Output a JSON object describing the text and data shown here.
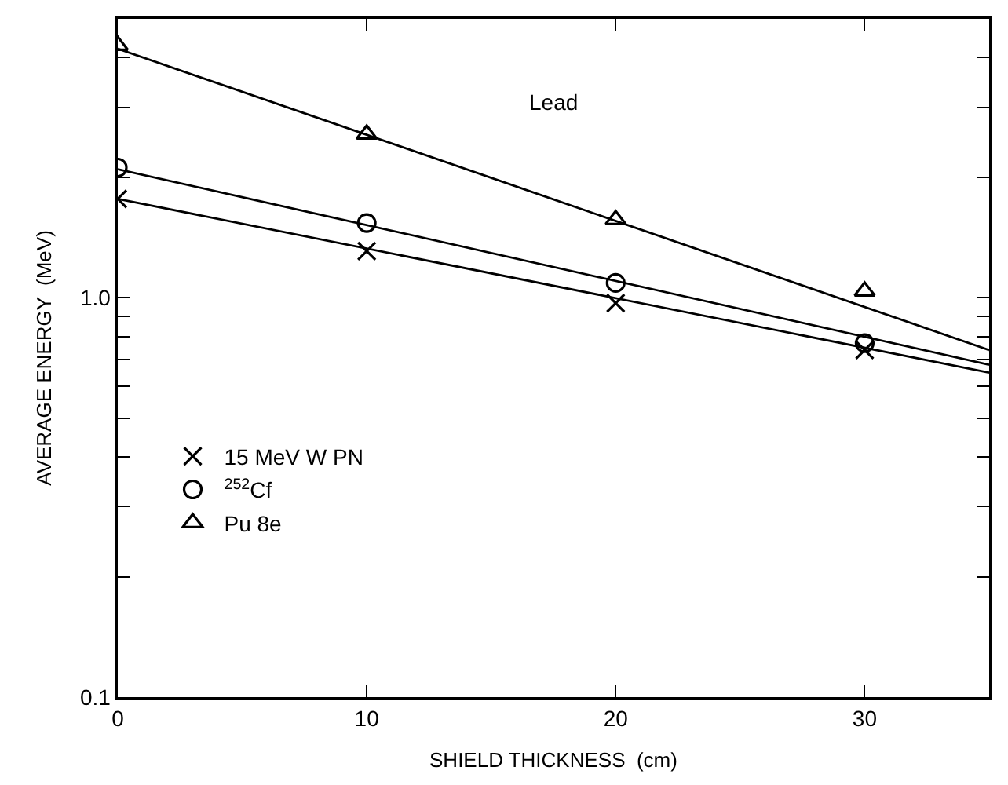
{
  "chart_data": {
    "type": "scatter",
    "xlabel": "SHIELD THICKNESS  (cm)",
    "ylabel": "AVERAGE ENERGY  (MeV)",
    "annotations": [
      "Lead"
    ],
    "log": "y",
    "legend": "bottom left",
    "xlim": [
      0,
      35
    ],
    "xticks": [
      0,
      10,
      20,
      30
    ],
    "ylim": [
      0.1,
      5
    ],
    "yticks": [
      {
        "value": 0.1,
        "label": "0.1"
      },
      {
        "value": 0.2,
        "label": null
      },
      {
        "value": 0.3,
        "label": null
      },
      {
        "value": 0.4,
        "label": null
      },
      {
        "value": 0.5,
        "label": null
      },
      {
        "value": 0.6,
        "label": null
      },
      {
        "value": 0.7,
        "label": null
      },
      {
        "value": 0.8,
        "label": null
      },
      {
        "value": 0.9,
        "label": null
      },
      {
        "value": 1,
        "label": "1.0"
      },
      {
        "value": 2,
        "label": null
      },
      {
        "value": 3,
        "label": null
      },
      {
        "value": 4,
        "label": null
      },
      {
        "value": 5,
        "label": null
      }
    ],
    "series": [
      {
        "type": "line",
        "color": "#000000",
        "marker": "none",
        "x": [
          0,
          35
        ],
        "values": [
          4.21,
          0.74
        ]
      },
      {
        "type": "line",
        "color": "#000000",
        "marker": "none",
        "x": [
          0,
          35
        ],
        "values": [
          2.1,
          0.68
        ]
      },
      {
        "type": "line",
        "color": "#000000",
        "marker": "none",
        "x": [
          0,
          35
        ],
        "values": [
          1.77,
          0.65
        ]
      },
      {
        "name": "15 MeV W PN",
        "color": "#000000",
        "marker": "cross",
        "x": [
          0,
          10,
          20,
          30
        ],
        "values": [
          1.77,
          1.31,
          0.97,
          0.74
        ]
      },
      {
        "name": "$^{252}$Cf",
        "color": "#000000",
        "marker": "circle",
        "x": [
          0,
          10,
          20,
          30
        ],
        "values": [
          2.12,
          1.54,
          1.09,
          0.77
        ]
      },
      {
        "name": "Pu 8e",
        "color": "#000000",
        "marker": "triangle",
        "x": [
          0,
          10,
          20,
          30
        ],
        "values": [
          4.29,
          2.57,
          1.57,
          1.04
        ]
      }
    ]
  }
}
